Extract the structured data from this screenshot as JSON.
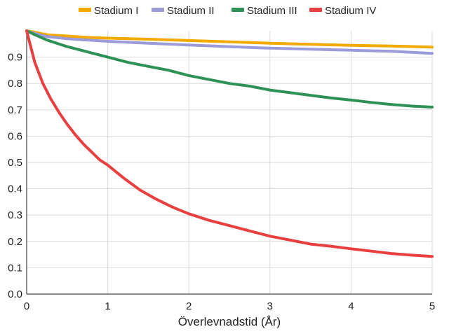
{
  "chart_data": {
    "type": "line",
    "title": "",
    "xlabel": "Överlevnadstid (År)",
    "ylabel": "",
    "xlim": [
      0,
      5
    ],
    "ylim": [
      0,
      1
    ],
    "grid": true,
    "legend_position": "top",
    "x_ticks": [
      "0",
      "1",
      "2",
      "3",
      "4",
      "5"
    ],
    "y_ticks": [
      "0.0",
      "0.1",
      "0.2",
      "0.3",
      "0.4",
      "0.5",
      "0.6",
      "0.7",
      "0.8",
      "0.9"
    ],
    "series": [
      {
        "name": "Stadium I",
        "color": "#f2a900",
        "x": [
          0,
          0.1,
          0.25,
          0.5,
          0.75,
          1,
          1.5,
          2,
          2.5,
          3,
          3.5,
          4,
          4.5,
          5
        ],
        "y": [
          1.0,
          0.995,
          0.985,
          0.98,
          0.975,
          0.972,
          0.968,
          0.963,
          0.958,
          0.953,
          0.949,
          0.945,
          0.942,
          0.938
        ]
      },
      {
        "name": "Stadium II",
        "color": "#9b9bd9",
        "x": [
          0,
          0.1,
          0.25,
          0.5,
          0.75,
          1,
          1.5,
          2,
          2.5,
          3,
          3.5,
          4,
          4.5,
          5
        ],
        "y": [
          1.0,
          0.99,
          0.978,
          0.97,
          0.965,
          0.96,
          0.953,
          0.946,
          0.94,
          0.934,
          0.93,
          0.926,
          0.922,
          0.914
        ]
      },
      {
        "name": "Stadium III",
        "color": "#2e9155",
        "x": [
          0,
          0.1,
          0.25,
          0.5,
          0.75,
          1,
          1.25,
          1.5,
          1.75,
          2,
          2.25,
          2.5,
          2.75,
          3,
          3.25,
          3.5,
          3.75,
          4,
          4.25,
          4.5,
          4.75,
          5
        ],
        "y": [
          1.0,
          0.985,
          0.965,
          0.94,
          0.92,
          0.9,
          0.88,
          0.865,
          0.85,
          0.83,
          0.815,
          0.8,
          0.79,
          0.775,
          0.765,
          0.755,
          0.745,
          0.737,
          0.728,
          0.72,
          0.714,
          0.71
        ]
      },
      {
        "name": "Stadium IV",
        "color": "#e84040",
        "x": [
          0,
          0.05,
          0.1,
          0.2,
          0.3,
          0.4,
          0.5,
          0.6,
          0.7,
          0.8,
          0.9,
          1,
          1.2,
          1.4,
          1.6,
          1.8,
          2,
          2.25,
          2.5,
          2.75,
          3,
          3.25,
          3.5,
          3.75,
          4,
          4.25,
          4.5,
          4.75,
          5
        ],
        "y": [
          1.0,
          0.94,
          0.88,
          0.8,
          0.74,
          0.69,
          0.645,
          0.605,
          0.57,
          0.54,
          0.51,
          0.49,
          0.44,
          0.395,
          0.36,
          0.33,
          0.305,
          0.28,
          0.26,
          0.24,
          0.22,
          0.205,
          0.19,
          0.182,
          0.172,
          0.163,
          0.154,
          0.148,
          0.143
        ]
      }
    ]
  }
}
